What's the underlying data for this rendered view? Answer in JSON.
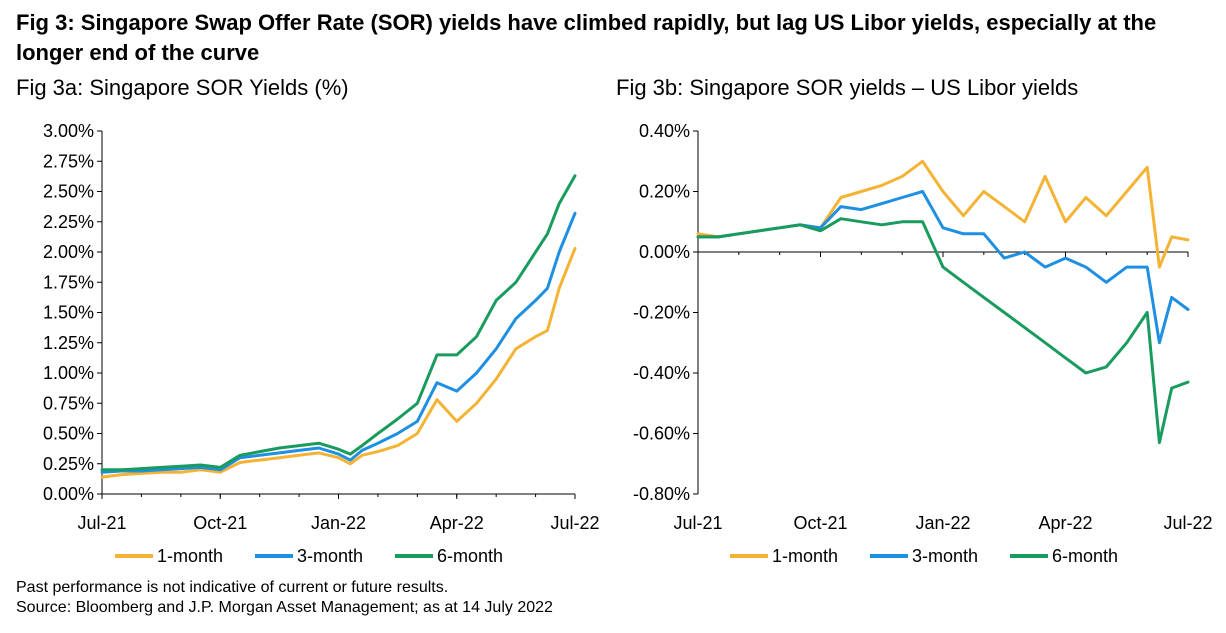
{
  "title": "Fig 3: Singapore Swap Offer Rate (SOR) yields have climbed rapidly, but lag US Libor yields, especially at the longer end of the curve",
  "footnotes": {
    "disclaimer": "Past performance is not indicative of current or future results.",
    "source": "Source: Bloomberg and J.P. Morgan Asset Management; as at 14 July 2022"
  },
  "colors": {
    "one_month": "#F5B335",
    "three_month": "#1E8FE1",
    "six_month": "#1A9B5E"
  },
  "chart_data": [
    {
      "type": "line",
      "title": "Fig 3a: Singapore SOR Yields (%)",
      "x_ticks": [
        "Jul-21",
        "Oct-21",
        "Jan-22",
        "Apr-22",
        "Jul-22"
      ],
      "x_range": [
        0,
        12
      ],
      "y_ticks": [
        "3.00%",
        "2.75%",
        "2.50%",
        "2.25%",
        "2.00%",
        "1.75%",
        "1.50%",
        "1.25%",
        "1.00%",
        "0.75%",
        "0.50%",
        "0.25%",
        "0.00%"
      ],
      "ylim": [
        0,
        3
      ],
      "grid": false,
      "legend_position": "bottom",
      "series": [
        {
          "name": "1-month",
          "color": "#F5B335",
          "x": [
            0,
            0.5,
            1,
            1.5,
            2,
            2.5,
            3,
            3.5,
            4,
            4.5,
            5,
            5.5,
            6,
            6.3,
            6.6,
            7,
            7.5,
            8,
            8.5,
            9,
            9.5,
            10,
            10.5,
            11,
            11.3,
            11.6,
            12
          ],
          "y": [
            0.14,
            0.16,
            0.17,
            0.18,
            0.18,
            0.2,
            0.18,
            0.26,
            0.28,
            0.3,
            0.32,
            0.34,
            0.3,
            0.25,
            0.32,
            0.35,
            0.4,
            0.5,
            0.78,
            0.6,
            0.75,
            0.95,
            1.2,
            1.3,
            1.35,
            1.7,
            2.03
          ]
        },
        {
          "name": "3-month",
          "color": "#1E8FE1",
          "x": [
            0,
            0.5,
            1,
            1.5,
            2,
            2.5,
            3,
            3.5,
            4,
            4.5,
            5,
            5.5,
            6,
            6.3,
            6.6,
            7,
            7.5,
            8,
            8.5,
            9,
            9.5,
            10,
            10.5,
            11,
            11.3,
            11.6,
            12
          ],
          "y": [
            0.18,
            0.19,
            0.19,
            0.2,
            0.21,
            0.22,
            0.2,
            0.3,
            0.32,
            0.34,
            0.36,
            0.38,
            0.33,
            0.28,
            0.36,
            0.42,
            0.5,
            0.6,
            0.92,
            0.85,
            1.0,
            1.2,
            1.45,
            1.6,
            1.7,
            2.0,
            2.32
          ]
        },
        {
          "name": "6-month",
          "color": "#1A9B5E",
          "x": [
            0,
            0.5,
            1,
            1.5,
            2,
            2.5,
            3,
            3.5,
            4,
            4.5,
            5,
            5.5,
            6,
            6.3,
            6.6,
            7,
            7.5,
            8,
            8.5,
            9,
            9.5,
            10,
            10.5,
            11,
            11.3,
            11.6,
            12
          ],
          "y": [
            0.2,
            0.2,
            0.21,
            0.22,
            0.23,
            0.24,
            0.22,
            0.32,
            0.35,
            0.38,
            0.4,
            0.42,
            0.37,
            0.33,
            0.4,
            0.5,
            0.62,
            0.75,
            1.15,
            1.15,
            1.3,
            1.6,
            1.75,
            2.0,
            2.15,
            2.4,
            2.63
          ]
        }
      ]
    },
    {
      "type": "line",
      "title": "Fig 3b: Singapore SOR yields – US Libor yields",
      "x_ticks": [
        "Jul-21",
        "Oct-21",
        "Jan-22",
        "Apr-22",
        "Jul-22"
      ],
      "x_range": [
        0,
        12
      ],
      "y_ticks": [
        "0.40%",
        "0.20%",
        "0.00%",
        "-0.20%",
        "-0.40%",
        "-0.60%",
        "-0.80%"
      ],
      "ylim": [
        -0.8,
        0.4
      ],
      "grid": false,
      "legend_position": "bottom",
      "series": [
        {
          "name": "1-month",
          "color": "#F5B335",
          "x": [
            0,
            0.5,
            1,
            1.5,
            2,
            2.5,
            3,
            3.5,
            4,
            4.5,
            5,
            5.5,
            6,
            6.5,
            7,
            7.5,
            8,
            8.5,
            9,
            9.5,
            10,
            10.5,
            11,
            11.3,
            11.6,
            12
          ],
          "y": [
            0.06,
            0.05,
            0.06,
            0.07,
            0.08,
            0.09,
            0.08,
            0.18,
            0.2,
            0.22,
            0.25,
            0.3,
            0.2,
            0.12,
            0.2,
            0.15,
            0.1,
            0.25,
            0.1,
            0.18,
            0.12,
            0.2,
            0.28,
            -0.05,
            0.05,
            0.04
          ]
        },
        {
          "name": "3-month",
          "color": "#1E8FE1",
          "x": [
            0,
            0.5,
            1,
            1.5,
            2,
            2.5,
            3,
            3.5,
            4,
            4.5,
            5,
            5.5,
            6,
            6.5,
            7,
            7.5,
            8,
            8.5,
            9,
            9.5,
            10,
            10.5,
            11,
            11.3,
            11.6,
            12
          ],
          "y": [
            0.05,
            0.05,
            0.06,
            0.07,
            0.08,
            0.09,
            0.08,
            0.15,
            0.14,
            0.16,
            0.18,
            0.2,
            0.08,
            0.06,
            0.06,
            -0.02,
            0.0,
            -0.05,
            -0.02,
            -0.05,
            -0.1,
            -0.05,
            -0.05,
            -0.3,
            -0.15,
            -0.19
          ]
        },
        {
          "name": "6-month",
          "color": "#1A9B5E",
          "x": [
            0,
            0.5,
            1,
            1.5,
            2,
            2.5,
            3,
            3.5,
            4,
            4.5,
            5,
            5.5,
            6,
            6.5,
            7,
            7.5,
            8,
            8.5,
            9,
            9.5,
            10,
            10.5,
            11,
            11.3,
            11.6,
            12
          ],
          "y": [
            0.05,
            0.05,
            0.06,
            0.07,
            0.08,
            0.09,
            0.07,
            0.11,
            0.1,
            0.09,
            0.1,
            0.1,
            -0.05,
            -0.1,
            -0.15,
            -0.2,
            -0.25,
            -0.3,
            -0.35,
            -0.4,
            -0.38,
            -0.3,
            -0.2,
            -0.63,
            -0.45,
            -0.43
          ]
        }
      ]
    }
  ]
}
